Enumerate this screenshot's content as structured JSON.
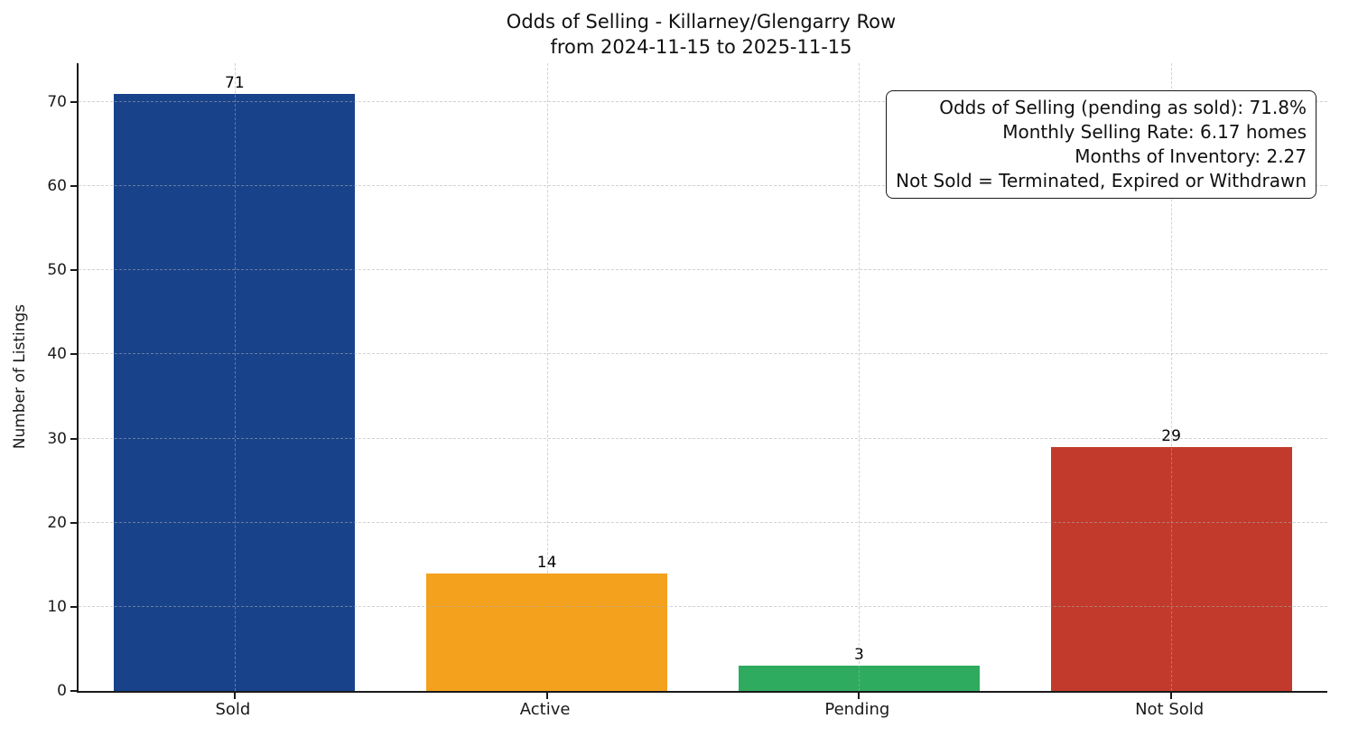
{
  "figure": {
    "title_line1": "Odds of Selling - Killarney/Glengarry Row",
    "title_line2": "from 2024-11-15 to 2025-11-15"
  },
  "chart_data": {
    "type": "bar",
    "title": "Odds of Selling - Killarney/Glengarry Row\nfrom 2024-11-15 to 2025-11-15",
    "categories": [
      "Sold",
      "Active",
      "Pending",
      "Not Sold"
    ],
    "values": [
      71,
      14,
      3,
      29
    ],
    "bar_colors": [
      "#18428a",
      "#f4a11d",
      "#2fab5f",
      "#c23a2c"
    ],
    "value_label_color": "#000000",
    "xlabel": "",
    "ylabel": "Number of Listings",
    "yticks": [
      0,
      10,
      20,
      30,
      40,
      50,
      60,
      70
    ],
    "ylim": [
      0,
      74.6
    ],
    "grid": "dashed both axes, drawn over bars",
    "legend_position": "none"
  },
  "annotation_box": {
    "lines": [
      "Odds of Selling (pending as sold): 71.8%",
      "Monthly Selling Rate: 6.17 homes",
      "Months of Inventory: 2.27",
      "Not Sold = Terminated, Expired or Withdrawn"
    ]
  }
}
